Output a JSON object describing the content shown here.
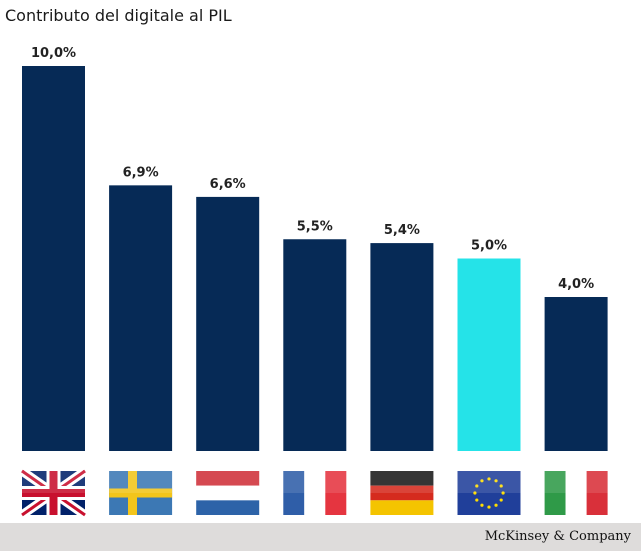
{
  "chart_data": {
    "type": "bar",
    "title": "Contributo del digitale al PIL",
    "categories": [
      "UK",
      "Svezia",
      "Paesi Bassi",
      "Francia",
      "Germania",
      "UE",
      "Italia"
    ],
    "values": [
      10.0,
      6.9,
      6.6,
      5.5,
      5.4,
      5.0,
      4.0
    ],
    "data_labels": [
      "10,0%",
      "6,9%",
      "6,6%",
      "5,5%",
      "5,4%",
      "5,0%",
      "4,0%"
    ],
    "ylim": [
      0,
      10
    ],
    "grid": false,
    "bar_color": "#062a56",
    "highlight_color": "#25e3e8",
    "highlight_index": 5,
    "category_icons": [
      "uk-flag-icon",
      "sweden-flag-icon",
      "netherlands-flag-icon",
      "france-flag-icon",
      "germany-flag-icon",
      "eu-flag-icon",
      "italy-flag-icon"
    ]
  },
  "source": "McKinsey & Company"
}
